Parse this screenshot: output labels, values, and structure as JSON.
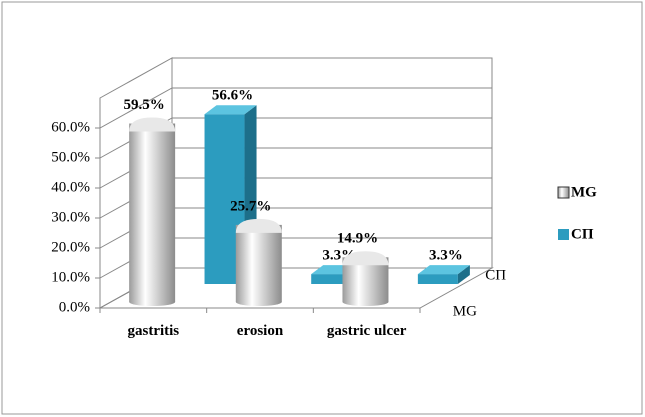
{
  "chart_data": {
    "type": "bar3d",
    "categories": [
      "gastritis",
      "erosion",
      "gastric ulcer"
    ],
    "series": [
      {
        "name": "MG",
        "color": "#d9d9d9",
        "values": [
          59.5,
          25.7,
          14.9
        ],
        "value_labels": [
          "59.5%",
          "25.7%",
          "14.9%"
        ]
      },
      {
        "name": "СП",
        "color": "#2c9cbf",
        "values": [
          56.6,
          3.3,
          3.3
        ],
        "value_labels": [
          "56.6%",
          "3.3%",
          "3.3%"
        ]
      }
    ],
    "ylim": [
      0,
      70
    ],
    "yticks": [
      {
        "value": 0,
        "label": "0.0%"
      },
      {
        "value": 10,
        "label": "10.0%"
      },
      {
        "value": 20,
        "label": "20.0%"
      },
      {
        "value": 30,
        "label": "30.0%"
      },
      {
        "value": 40,
        "label": "40.0%"
      },
      {
        "value": 50,
        "label": "50.0%"
      },
      {
        "value": 60,
        "label": "60.0%"
      }
    ],
    "grid": true,
    "legend": "right"
  }
}
